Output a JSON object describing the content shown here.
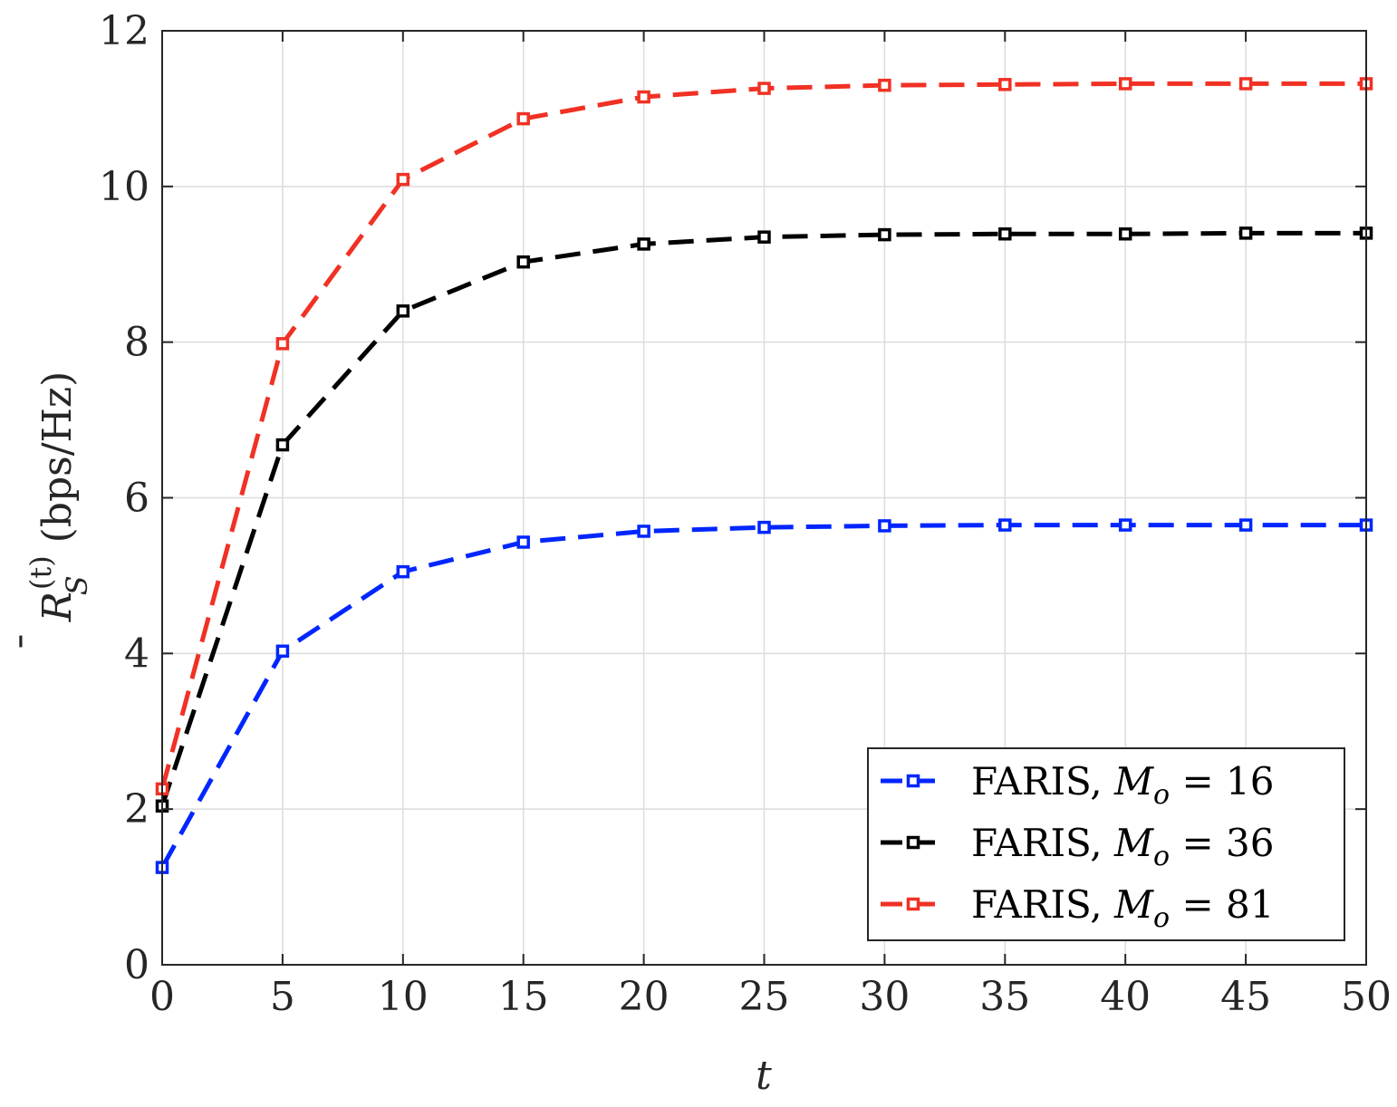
{
  "chart_data": {
    "type": "line",
    "xlabel": "t",
    "ylabel": {
      "main": "R",
      "superscript": "(t)",
      "subscript": "S",
      "units": "(bps/Hz)"
    },
    "xlim": [
      0,
      50
    ],
    "ylim": [
      0,
      12
    ],
    "xticks": [
      0,
      5,
      10,
      15,
      20,
      25,
      30,
      35,
      40,
      45,
      50
    ],
    "yticks": [
      0,
      2,
      4,
      6,
      8,
      10,
      12
    ],
    "x": [
      0,
      5,
      10,
      15,
      20,
      25,
      30,
      35,
      40,
      45,
      50
    ],
    "grid": true,
    "legend_position": "bottom-right",
    "series": [
      {
        "name": "FARIS, M_o = 16",
        "legend_prefix": "FARIS,",
        "legend_var": "M",
        "legend_sub": "o",
        "legend_rhs": "= 16",
        "color": "#0026ff",
        "values": [
          1.25,
          4.03,
          5.05,
          5.43,
          5.57,
          5.62,
          5.64,
          5.65,
          5.65,
          5.65,
          5.65
        ]
      },
      {
        "name": "FARIS, M_o = 36",
        "legend_prefix": "FARIS,",
        "legend_var": "M",
        "legend_sub": "o",
        "legend_rhs": "= 36",
        "color": "#000000",
        "values": [
          2.04,
          6.68,
          8.4,
          9.03,
          9.26,
          9.35,
          9.38,
          9.39,
          9.39,
          9.4,
          9.4
        ]
      },
      {
        "name": "FARIS, M_o = 81",
        "legend_prefix": "FARIS,",
        "legend_var": "M",
        "legend_sub": "o",
        "legend_rhs": "= 81",
        "color": "#f03124",
        "values": [
          2.26,
          7.98,
          10.09,
          10.87,
          11.15,
          11.26,
          11.3,
          11.31,
          11.32,
          11.32,
          11.32
        ]
      }
    ]
  }
}
